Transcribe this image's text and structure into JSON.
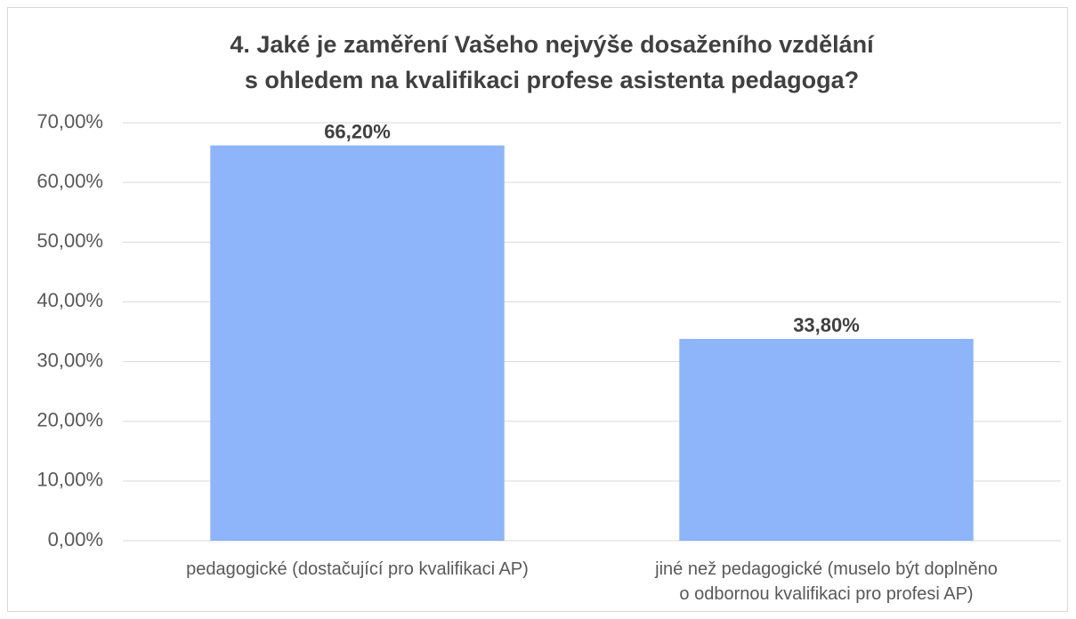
{
  "chart_data": {
    "type": "bar",
    "title": "4. Jaké je zaměření Vašeho nejvýše dosaženího vzdělání\ns ohledem na kvalifikaci profese asistenta pedagoga?",
    "categories": [
      "pedagogické (dostačující pro kvalifikaci AP)",
      "jiné než pedagogické (muselo být doplněno\no odbornou kvalifikaci pro profesi AP)"
    ],
    "values": [
      66.2,
      33.8
    ],
    "value_labels": [
      "66,20%",
      "33,80%"
    ],
    "color": "#8eb4f9",
    "ylim": [
      0,
      70
    ],
    "yticks": [
      {
        "value": 0,
        "label": "0,00%"
      },
      {
        "value": 10,
        "label": "10,00%"
      },
      {
        "value": 20,
        "label": "20,00%"
      },
      {
        "value": 30,
        "label": "30,00%"
      },
      {
        "value": 40,
        "label": "40,00%"
      },
      {
        "value": 50,
        "label": "50,00%"
      },
      {
        "value": 60,
        "label": "60,00%"
      },
      {
        "value": 70,
        "label": "70,00%"
      }
    ],
    "grid": true
  }
}
